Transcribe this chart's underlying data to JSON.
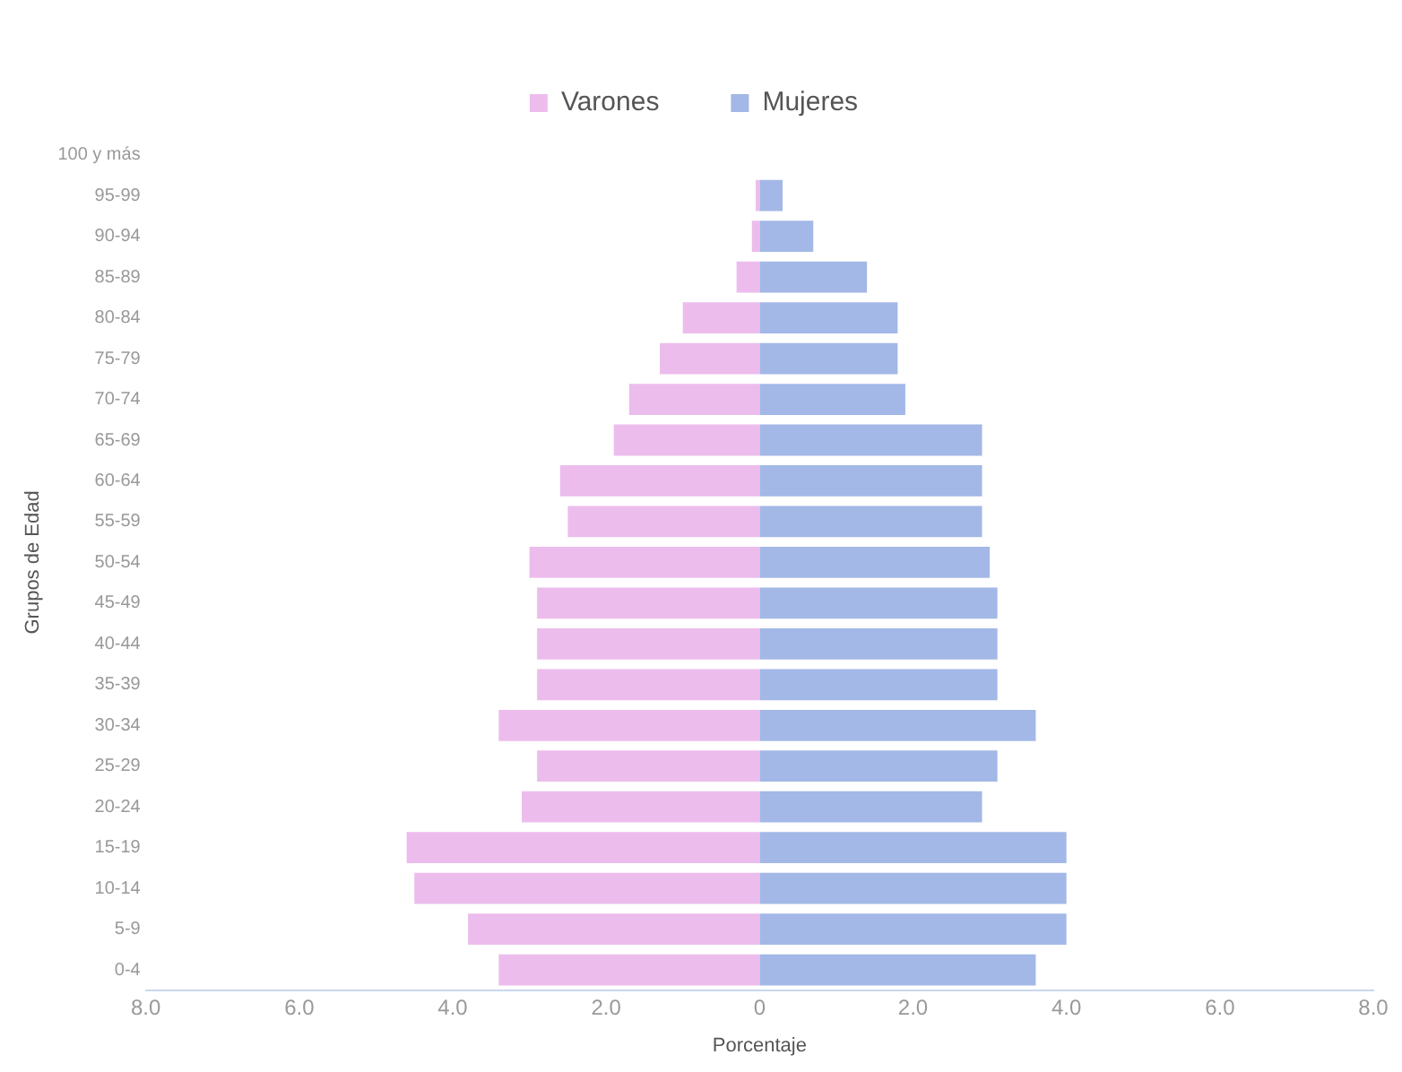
{
  "chart_data": {
    "type": "bar",
    "orientation": "horizontal",
    "xlabel": "Porcentaje",
    "ylabel": "Grupos de Edad",
    "categories": [
      "100 y más",
      "95-99",
      "90-94",
      "85-89",
      "80-84",
      "75-79",
      "70-74",
      "65-69",
      "60-64",
      "55-59",
      "50-54",
      "45-49",
      "40-44",
      "35-39",
      "30-34",
      "25-29",
      "20-24",
      "15-19",
      "10-14",
      "5-9",
      "0-4"
    ],
    "series": [
      {
        "name": "Varones",
        "color": "#ecbdec",
        "values": [
          0,
          -0.05,
          -0.1,
          -0.3,
          -1.0,
          -1.3,
          -1.7,
          -1.9,
          -2.6,
          -2.5,
          -3.0,
          -2.9,
          -2.9,
          -2.9,
          -3.4,
          -2.9,
          -3.1,
          -4.6,
          -4.5,
          -3.8,
          -3.4
        ]
      },
      {
        "name": "Mujeres",
        "color": "#a3b8e6",
        "values": [
          0,
          0.3,
          0.7,
          1.4,
          1.8,
          1.8,
          1.9,
          2.9,
          2.9,
          2.9,
          3.0,
          3.1,
          3.1,
          3.1,
          3.6,
          3.1,
          2.9,
          4.0,
          4.0,
          4.0,
          3.6
        ]
      }
    ],
    "xlim": [
      -8,
      8
    ],
    "xticks": [
      {
        "value": -8,
        "label": "8.0"
      },
      {
        "value": -6,
        "label": "6.0"
      },
      {
        "value": -4,
        "label": "4.0"
      },
      {
        "value": -2,
        "label": "2.0"
      },
      0,
      {
        "value": 2,
        "label": "2.0"
      },
      {
        "value": 4,
        "label": "4.0"
      },
      {
        "value": 6,
        "label": "6.0"
      },
      {
        "value": 8,
        "label": "8.0"
      }
    ],
    "stacked": true,
    "grid": false,
    "legend": "top"
  }
}
